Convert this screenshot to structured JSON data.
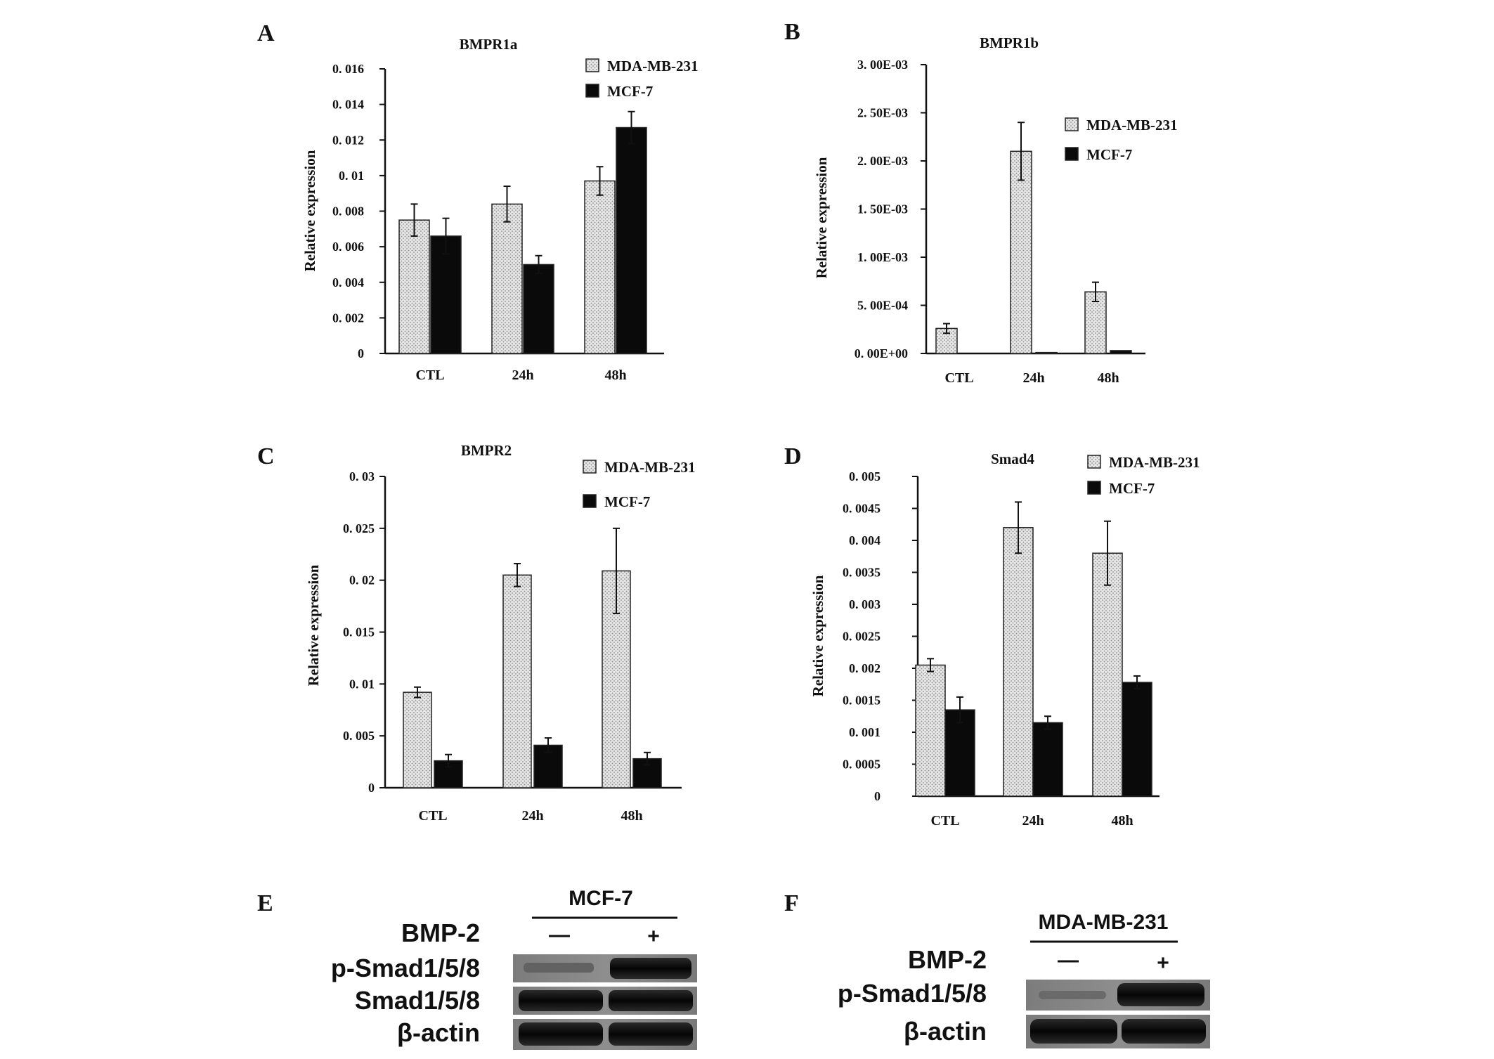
{
  "colors": {
    "mda_fill": "#e2e2e2",
    "mcf7_fill": "#0a0a0a",
    "axis": "#111111"
  },
  "chart_data": [
    {
      "panel": "A",
      "type": "bar",
      "title": "BMPR1a",
      "ylabel": "Relative expression",
      "xlabel": "",
      "categories": [
        "CTL",
        "24h",
        "48h"
      ],
      "ylim": [
        0,
        0.016
      ],
      "yticks": [
        0,
        0.002,
        0.004,
        0.006,
        0.008,
        0.01,
        0.012,
        0.014,
        0.016
      ],
      "ytick_labels": [
        "0",
        "0. 002",
        "0. 004",
        "0. 006",
        "0. 008",
        "0. 01",
        "0. 012",
        "0. 014",
        "0. 016"
      ],
      "legend": "top-right",
      "grid": false,
      "series": [
        {
          "name": "MDA-MB-231",
          "values": [
            0.0075,
            0.0084,
            0.0097
          ],
          "errors": [
            0.0009,
            0.001,
            0.0008
          ]
        },
        {
          "name": "MCF-7",
          "values": [
            0.0066,
            0.005,
            0.0127
          ],
          "errors": [
            0.001,
            0.0005,
            0.0009
          ]
        }
      ]
    },
    {
      "panel": "B",
      "type": "bar",
      "title": "BMPR1b",
      "ylabel": "Relative expression",
      "xlabel": "",
      "categories": [
        "CTL",
        "24h",
        "48h"
      ],
      "ylim": [
        0,
        0.003
      ],
      "yticks": [
        0,
        0.0005,
        0.001,
        0.0015,
        0.002,
        0.0025,
        0.003
      ],
      "ytick_labels": [
        "0. 00E+00",
        "5. 00E-04",
        "1. 00E-03",
        "1. 50E-03",
        "2. 00E-03",
        "2. 50E-03",
        "3. 00E-03"
      ],
      "legend": "right",
      "grid": false,
      "series": [
        {
          "name": "MDA-MB-231",
          "values": [
            0.00026,
            0.0021,
            0.00064
          ],
          "errors": [
            5e-05,
            0.0003,
            0.0001
          ]
        },
        {
          "name": "MCF-7",
          "values": [
            0.0,
            1e-05,
            3e-05
          ],
          "errors": [
            0,
            0,
            0
          ]
        }
      ]
    },
    {
      "panel": "C",
      "type": "bar",
      "title": "BMPR2",
      "ylabel": "Relative expression",
      "xlabel": "",
      "categories": [
        "CTL",
        "24h",
        "48h"
      ],
      "ylim": [
        0,
        0.03
      ],
      "yticks": [
        0,
        0.005,
        0.01,
        0.015,
        0.02,
        0.025,
        0.03
      ],
      "ytick_labels": [
        "0",
        "0. 005",
        "0. 01",
        "0. 015",
        "0. 02",
        "0. 025",
        "0. 03"
      ],
      "legend": "top-right",
      "grid": false,
      "series": [
        {
          "name": "MDA-MB-231",
          "values": [
            0.0092,
            0.0205,
            0.0209
          ],
          "errors": [
            0.0005,
            0.0011,
            0.0041
          ]
        },
        {
          "name": "MCF-7",
          "values": [
            0.0026,
            0.0041,
            0.0028
          ],
          "errors": [
            0.0006,
            0.0007,
            0.0006
          ]
        }
      ]
    },
    {
      "panel": "D",
      "type": "bar",
      "title": "Smad4",
      "ylabel": "Relative expression",
      "xlabel": "",
      "categories": [
        "CTL",
        "24h",
        "48h"
      ],
      "ylim": [
        0,
        0.005
      ],
      "yticks": [
        0,
        0.0005,
        0.001,
        0.0015,
        0.002,
        0.0025,
        0.003,
        0.0035,
        0.004,
        0.0045,
        0.005
      ],
      "ytick_labels": [
        "0",
        "0. 0005",
        "0. 001",
        "0. 0015",
        "0. 002",
        "0. 0025",
        "0. 003",
        "0. 0035",
        "0. 004",
        "0. 0045",
        "0. 005"
      ],
      "legend": "top-right",
      "grid": false,
      "series": [
        {
          "name": "MDA-MB-231",
          "values": [
            0.00205,
            0.0042,
            0.0038
          ],
          "errors": [
            0.0001,
            0.0004,
            0.0005
          ]
        },
        {
          "name": "MCF-7",
          "values": [
            0.00135,
            0.00115,
            0.00178
          ],
          "errors": [
            0.0002,
            0.0001,
            0.0001
          ]
        }
      ]
    }
  ],
  "panel_e": {
    "letter": "E",
    "cell_line": "MCF-7",
    "treatment_label": "BMP-2",
    "lanes": [
      "—",
      "+"
    ],
    "rows": [
      "p-Smad1/5/8",
      "Smad1/5/8",
      "β-actin"
    ]
  },
  "panel_f": {
    "letter": "F",
    "cell_line": "MDA-MB-231",
    "treatment_label": "BMP-2",
    "lanes": [
      "—",
      "+"
    ],
    "rows": [
      "p-Smad1/5/8",
      "β-actin"
    ]
  }
}
